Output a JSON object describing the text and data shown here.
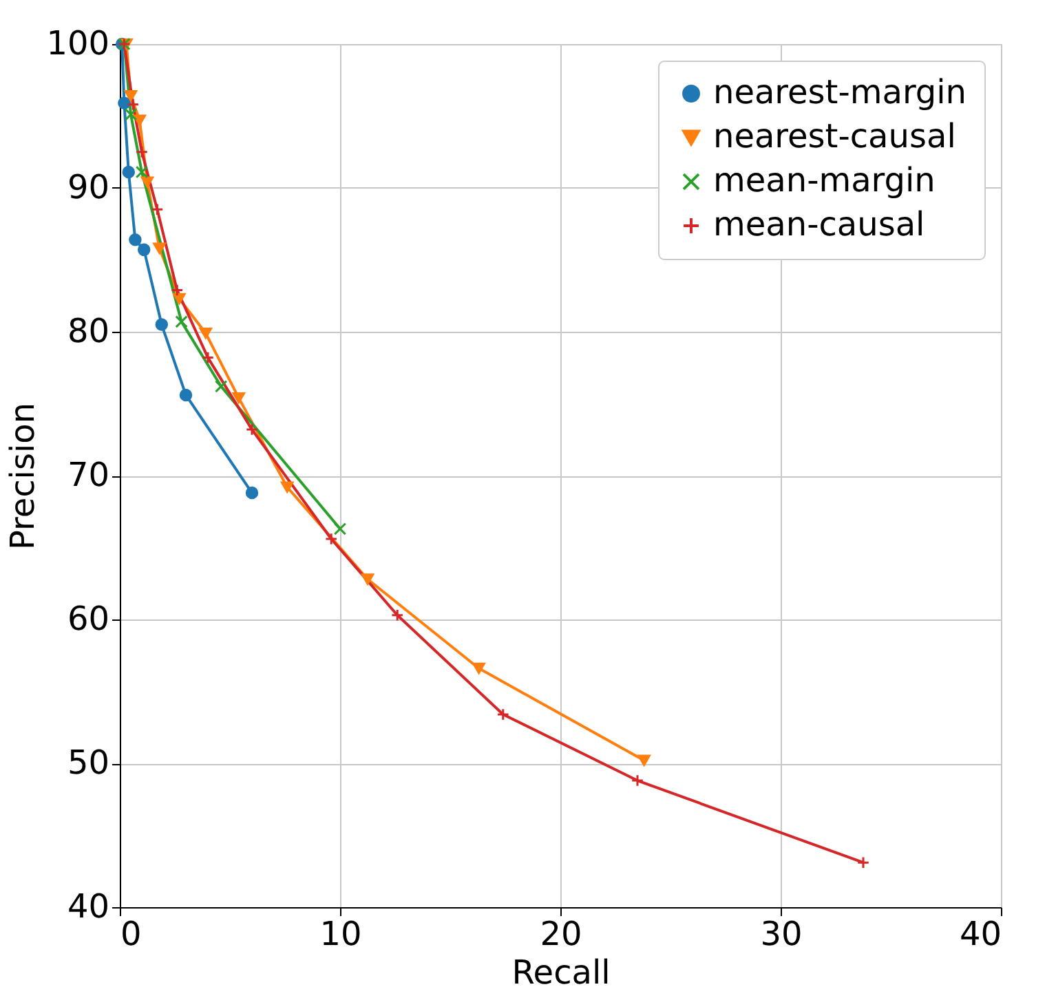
{
  "chart_data": {
    "type": "line",
    "xlabel": "Recall",
    "ylabel": "Precision",
    "xlim": [
      0,
      40
    ],
    "xticks": [
      0,
      10,
      20,
      30,
      40
    ],
    "ylim": [
      40,
      100
    ],
    "yticks": [
      40,
      50,
      60,
      70,
      80,
      90,
      100
    ],
    "grid": true,
    "legend": "top right",
    "series": [
      {
        "name": "nearest-margin",
        "color": "#1f77b4",
        "marker": "circle",
        "x": [
          0.1,
          0.2,
          0.4,
          0.7,
          1.1,
          1.9,
          3.0,
          6.0
        ],
        "values": [
          100,
          95.9,
          91.1,
          86.4,
          85.7,
          80.5,
          75.6,
          68.8
        ]
      },
      {
        "name": "nearest-causal",
        "color": "#ff7f0e",
        "marker": "triangle",
        "x": [
          0.3,
          0.5,
          0.9,
          1.25,
          1.8,
          2.7,
          3.9,
          5.4,
          7.6,
          11.25,
          16.3,
          23.8
        ],
        "values": [
          100,
          96.4,
          94.7,
          90.4,
          85.8,
          82.3,
          79.9,
          75.4,
          69.2,
          62.8,
          56.6,
          50.2
        ]
      },
      {
        "name": "mean-margin",
        "color": "#2ca02c",
        "marker": "cross",
        "x": [
          0.2,
          0.5,
          1.0,
          2.8,
          4.6,
          10.0
        ],
        "values": [
          100,
          95.1,
          91.1,
          80.7,
          76.2,
          66.3
        ]
      },
      {
        "name": "mean-causal",
        "color": "#d62728",
        "marker": "plus",
        "x": [
          0.2,
          0.6,
          1.0,
          1.7,
          2.6,
          4.0,
          6.0,
          9.6,
          12.6,
          17.4,
          23.5,
          33.75
        ],
        "values": [
          100,
          95.8,
          92.5,
          88.5,
          82.9,
          78.2,
          73.2,
          65.6,
          60.3,
          53.4,
          48.8,
          43.1
        ]
      }
    ]
  }
}
